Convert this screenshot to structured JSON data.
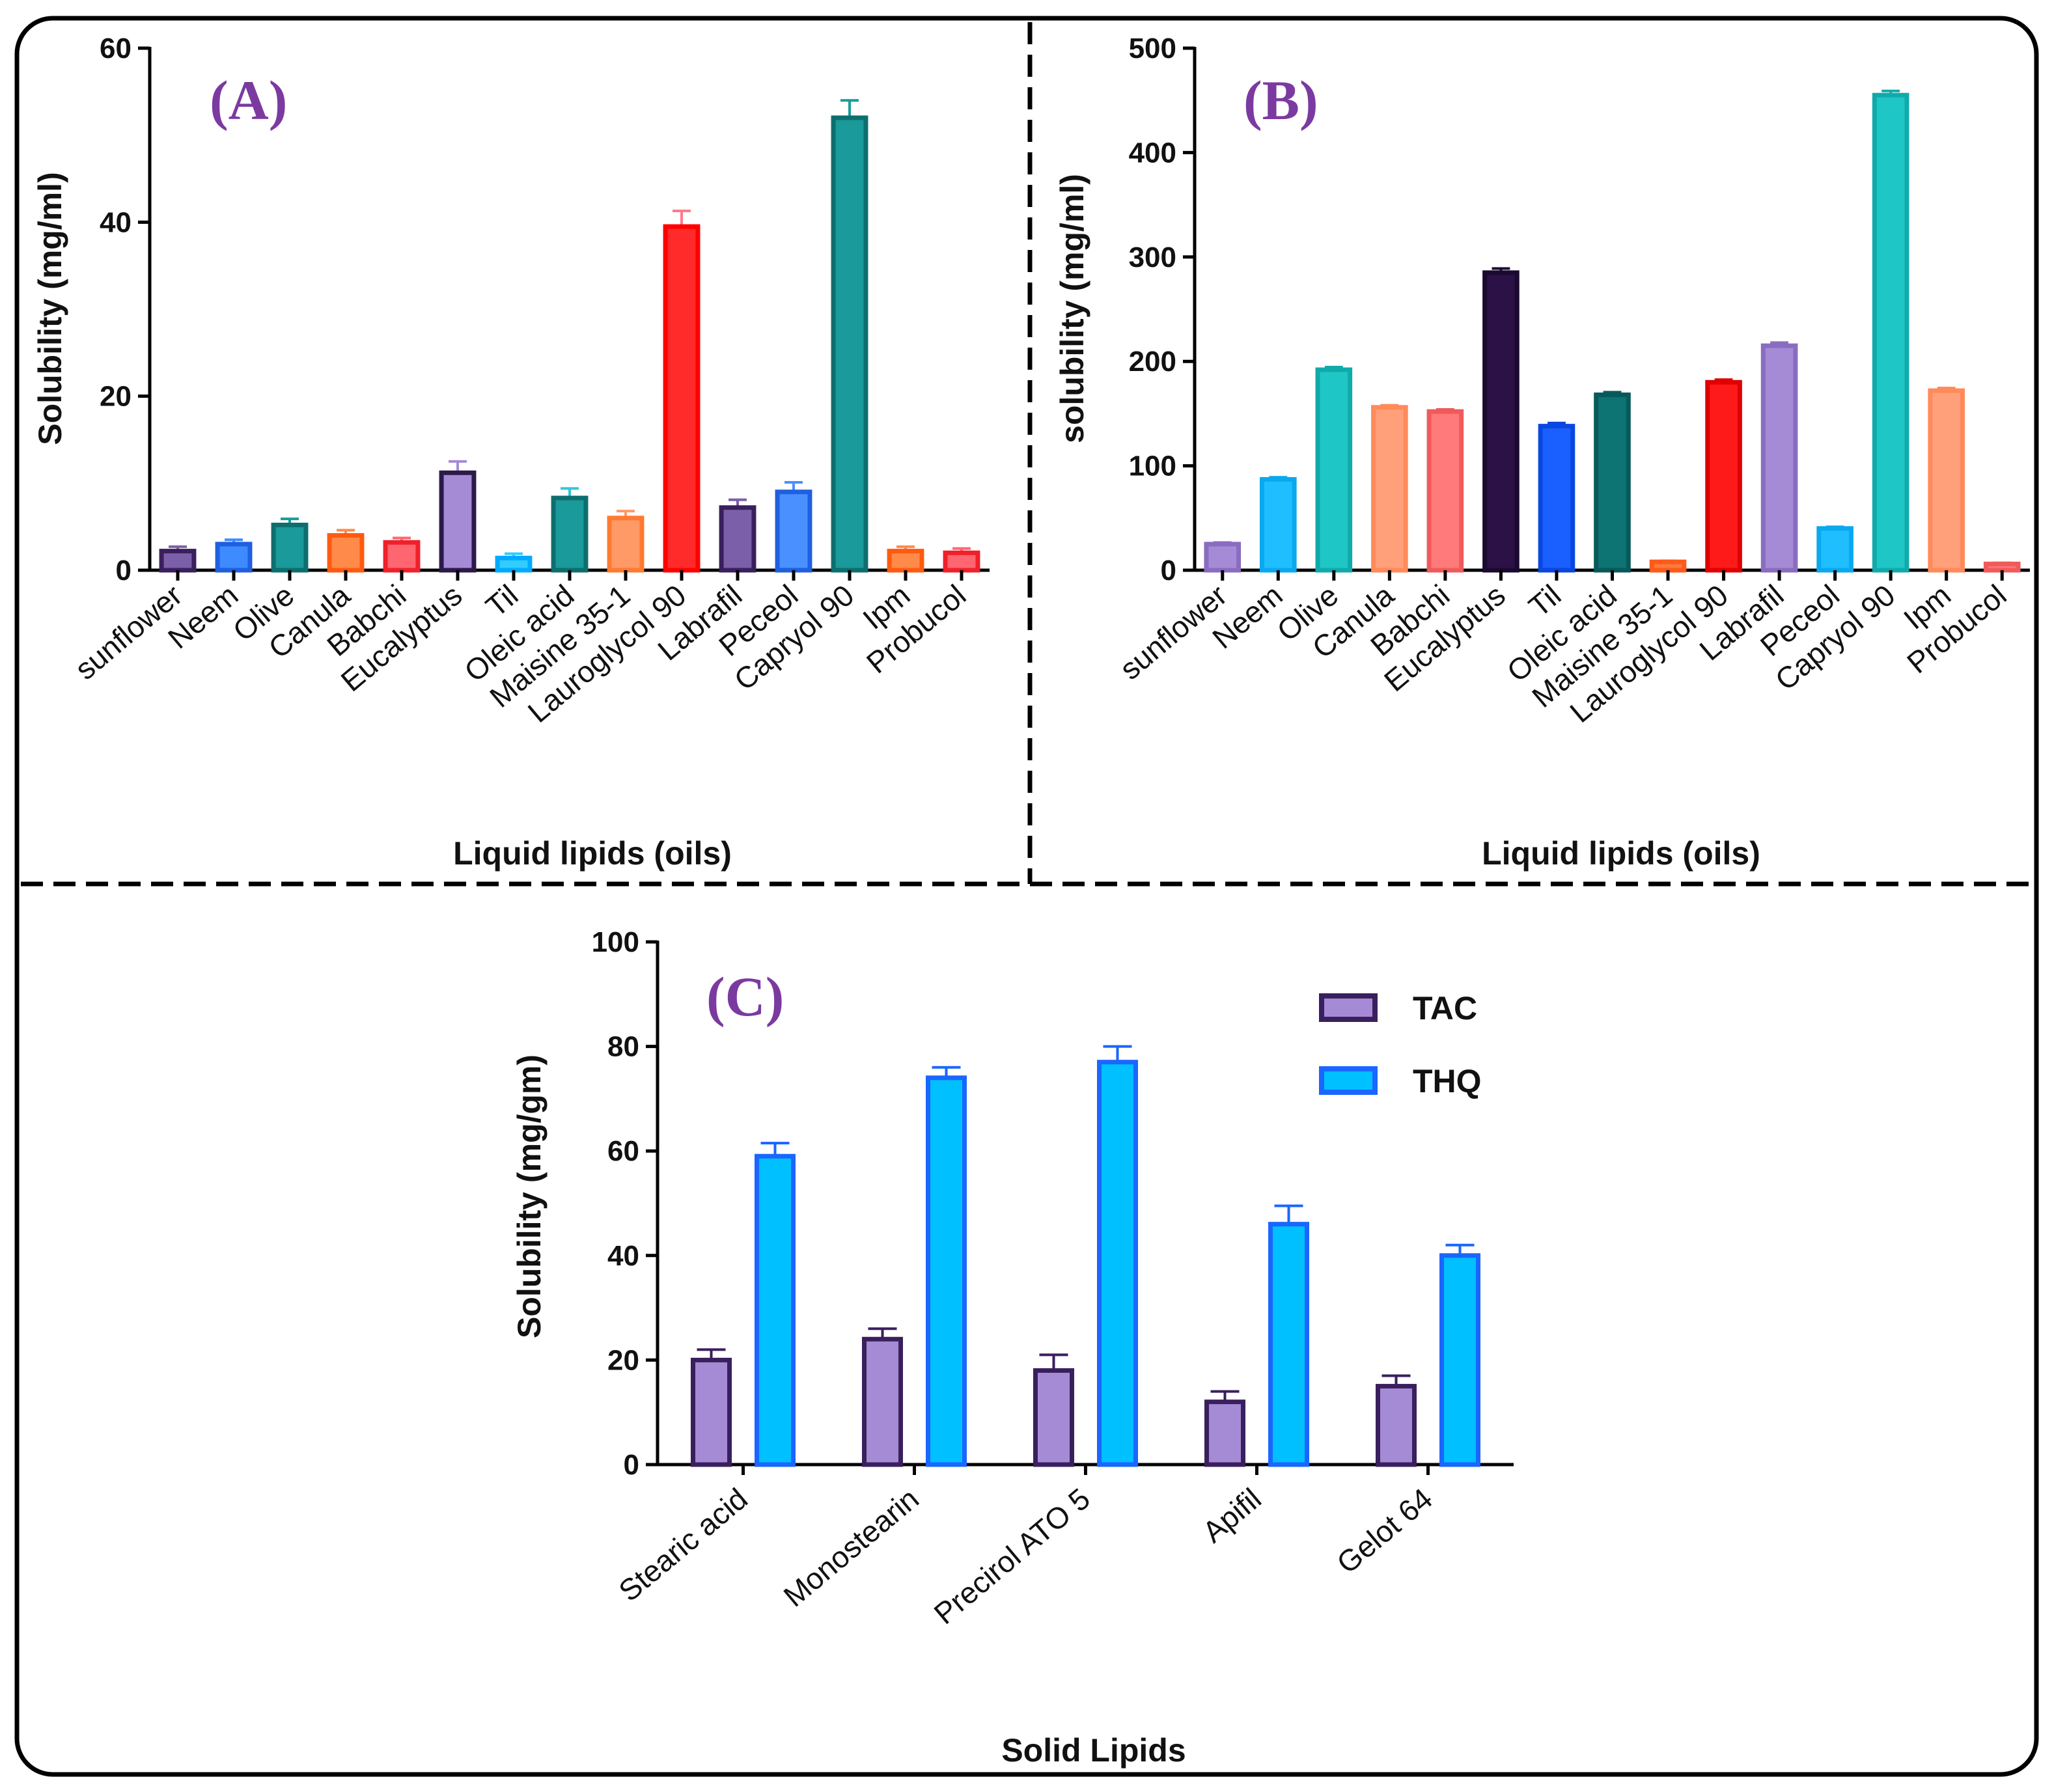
{
  "chart_data": [
    {
      "id": "A",
      "type": "bar",
      "panel_label": "(A)",
      "xlabel": "Liquid lipids (oils)",
      "ylabel": "Solubility (mg/ml)",
      "ylim": [
        0,
        60
      ],
      "yticks": [
        0,
        20,
        40,
        60
      ],
      "categories": [
        "sunflower",
        "Neem",
        "Olive",
        "Canula",
        "Babchi",
        "Eucalyptus",
        "Til",
        "Oleic acid",
        "Maisine 35-1",
        "Lauroglycol 90",
        "Labrafil",
        "Peceol",
        "Capryol 90",
        "Ipm",
        "Probucol"
      ],
      "values": [
        2.2,
        3.0,
        5.2,
        4.0,
        3.2,
        11.2,
        1.4,
        8.3,
        6.0,
        39.5,
        7.2,
        9.0,
        52.0,
        2.2,
        2.0
      ],
      "errors": [
        0.5,
        0.5,
        0.7,
        0.6,
        0.5,
        1.3,
        0.5,
        1.1,
        0.8,
        1.8,
        0.9,
        1.1,
        2.0,
        0.5,
        0.5
      ],
      "fills": [
        "#7b5fa8",
        "#3d8bff",
        "#1a9a9a",
        "#ff8a4a",
        "#ff6670",
        "#a58bd6",
        "#33ccff",
        "#1a9a9a",
        "#ff9966",
        "#ff2a2a",
        "#7b5fa8",
        "#4a90ff",
        "#1a9a9a",
        "#ff8a4a",
        "#ff6670"
      ],
      "edges": [
        "#3a1f5d",
        "#1f5fe0",
        "#0e6e6e",
        "#ff5a10",
        "#f0202a",
        "#2c1a4a",
        "#00aaff",
        "#0e6e6e",
        "#ff7a30",
        "#ff0000",
        "#3a1f5d",
        "#1f5fe0",
        "#0e6e6e",
        "#ff5a10",
        "#f0202a"
      ],
      "err_colors": [
        "#7b5fa8",
        "#3d8bff",
        "#1a9a9a",
        "#ff8a4a",
        "#ff6670",
        "#a58bd6",
        "#33ccff",
        "#33c6d6",
        "#ff9966",
        "#ff7a8a",
        "#7b5fa8",
        "#4a90ff",
        "#1a9a9a",
        "#ff8a4a",
        "#ff6670"
      ]
    },
    {
      "id": "B",
      "type": "bar",
      "panel_label": "(B)",
      "xlabel": "Liquid lipids (oils)",
      "ylabel": "solubility (mg/ml)",
      "ylim": [
        0,
        500
      ],
      "yticks": [
        0,
        100,
        200,
        300,
        400,
        500
      ],
      "categories": [
        "sunflower",
        "Neem",
        "Olive",
        "Canula",
        "Babchi",
        "Eucalyptus",
        "Til",
        "Oleic acid",
        "Maisine 35-1",
        "Lauroglycol 90",
        "Labrafil",
        "Peceol",
        "Capryol 90",
        "Ipm",
        "Probucol"
      ],
      "values": [
        25,
        87,
        192,
        156,
        152,
        285,
        138,
        168,
        8,
        180,
        215,
        40,
        455,
        172,
        6
      ],
      "errors": [
        1.5,
        2,
        2.5,
        2,
        2,
        4,
        3,
        2.5,
        1,
        2.5,
        3,
        1.5,
        4,
        2.5,
        1
      ],
      "fills": [
        "#a58bd6",
        "#1fbfff",
        "#1fc6c6",
        "#ffa07a",
        "#ff7a7a",
        "#2c1147",
        "#1a5fff",
        "#0e7373",
        "#ff7a3a",
        "#ff1a1a",
        "#a58bd6",
        "#1fbfff",
        "#1fc6c6",
        "#ffa07a",
        "#ff7a7a"
      ],
      "edges": [
        "#8a6cc0",
        "#0aa8ee",
        "#10aaaa",
        "#ff8a5a",
        "#f05a5a",
        "#1a0a30",
        "#0a47e0",
        "#085a5a",
        "#ff5a1a",
        "#e00000",
        "#8a6cc0",
        "#0aa8ee",
        "#10aaaa",
        "#ff8a5a",
        "#f05a5a"
      ],
      "err_colors": [
        "#8a6cc0",
        "#0aa8ee",
        "#10aaaa",
        "#ff8a5a",
        "#f05a5a",
        "#1a0a30",
        "#0a47e0",
        "#085a5a",
        "#ff5a1a",
        "#e00000",
        "#8a6cc0",
        "#0aa8ee",
        "#10aaaa",
        "#ff8a5a",
        "#f05a5a"
      ]
    },
    {
      "id": "C",
      "type": "bar",
      "panel_label": "(C)",
      "xlabel": "Solid Lipids",
      "ylabel": "Solubility (mg/gm)",
      "ylim": [
        0,
        100
      ],
      "yticks": [
        0,
        20,
        40,
        60,
        80,
        100
      ],
      "categories": [
        "Stearic acid",
        "Monostearin",
        "Precirol ATO 5",
        "Apifil",
        "Gelot 64"
      ],
      "series": [
        {
          "name": "TAC",
          "values": [
            20,
            24,
            18,
            12,
            15
          ],
          "errors": [
            2,
            2,
            3,
            2,
            2
          ],
          "fill": "#a58bd6",
          "edge": "#3a1f5d"
        },
        {
          "name": "THQ",
          "values": [
            59,
            74,
            77,
            46,
            40
          ],
          "errors": [
            2.5,
            2,
            3,
            3.5,
            2
          ],
          "fill": "#00c0ff",
          "edge": "#1a66ff"
        }
      ],
      "legend": "top-right"
    }
  ]
}
